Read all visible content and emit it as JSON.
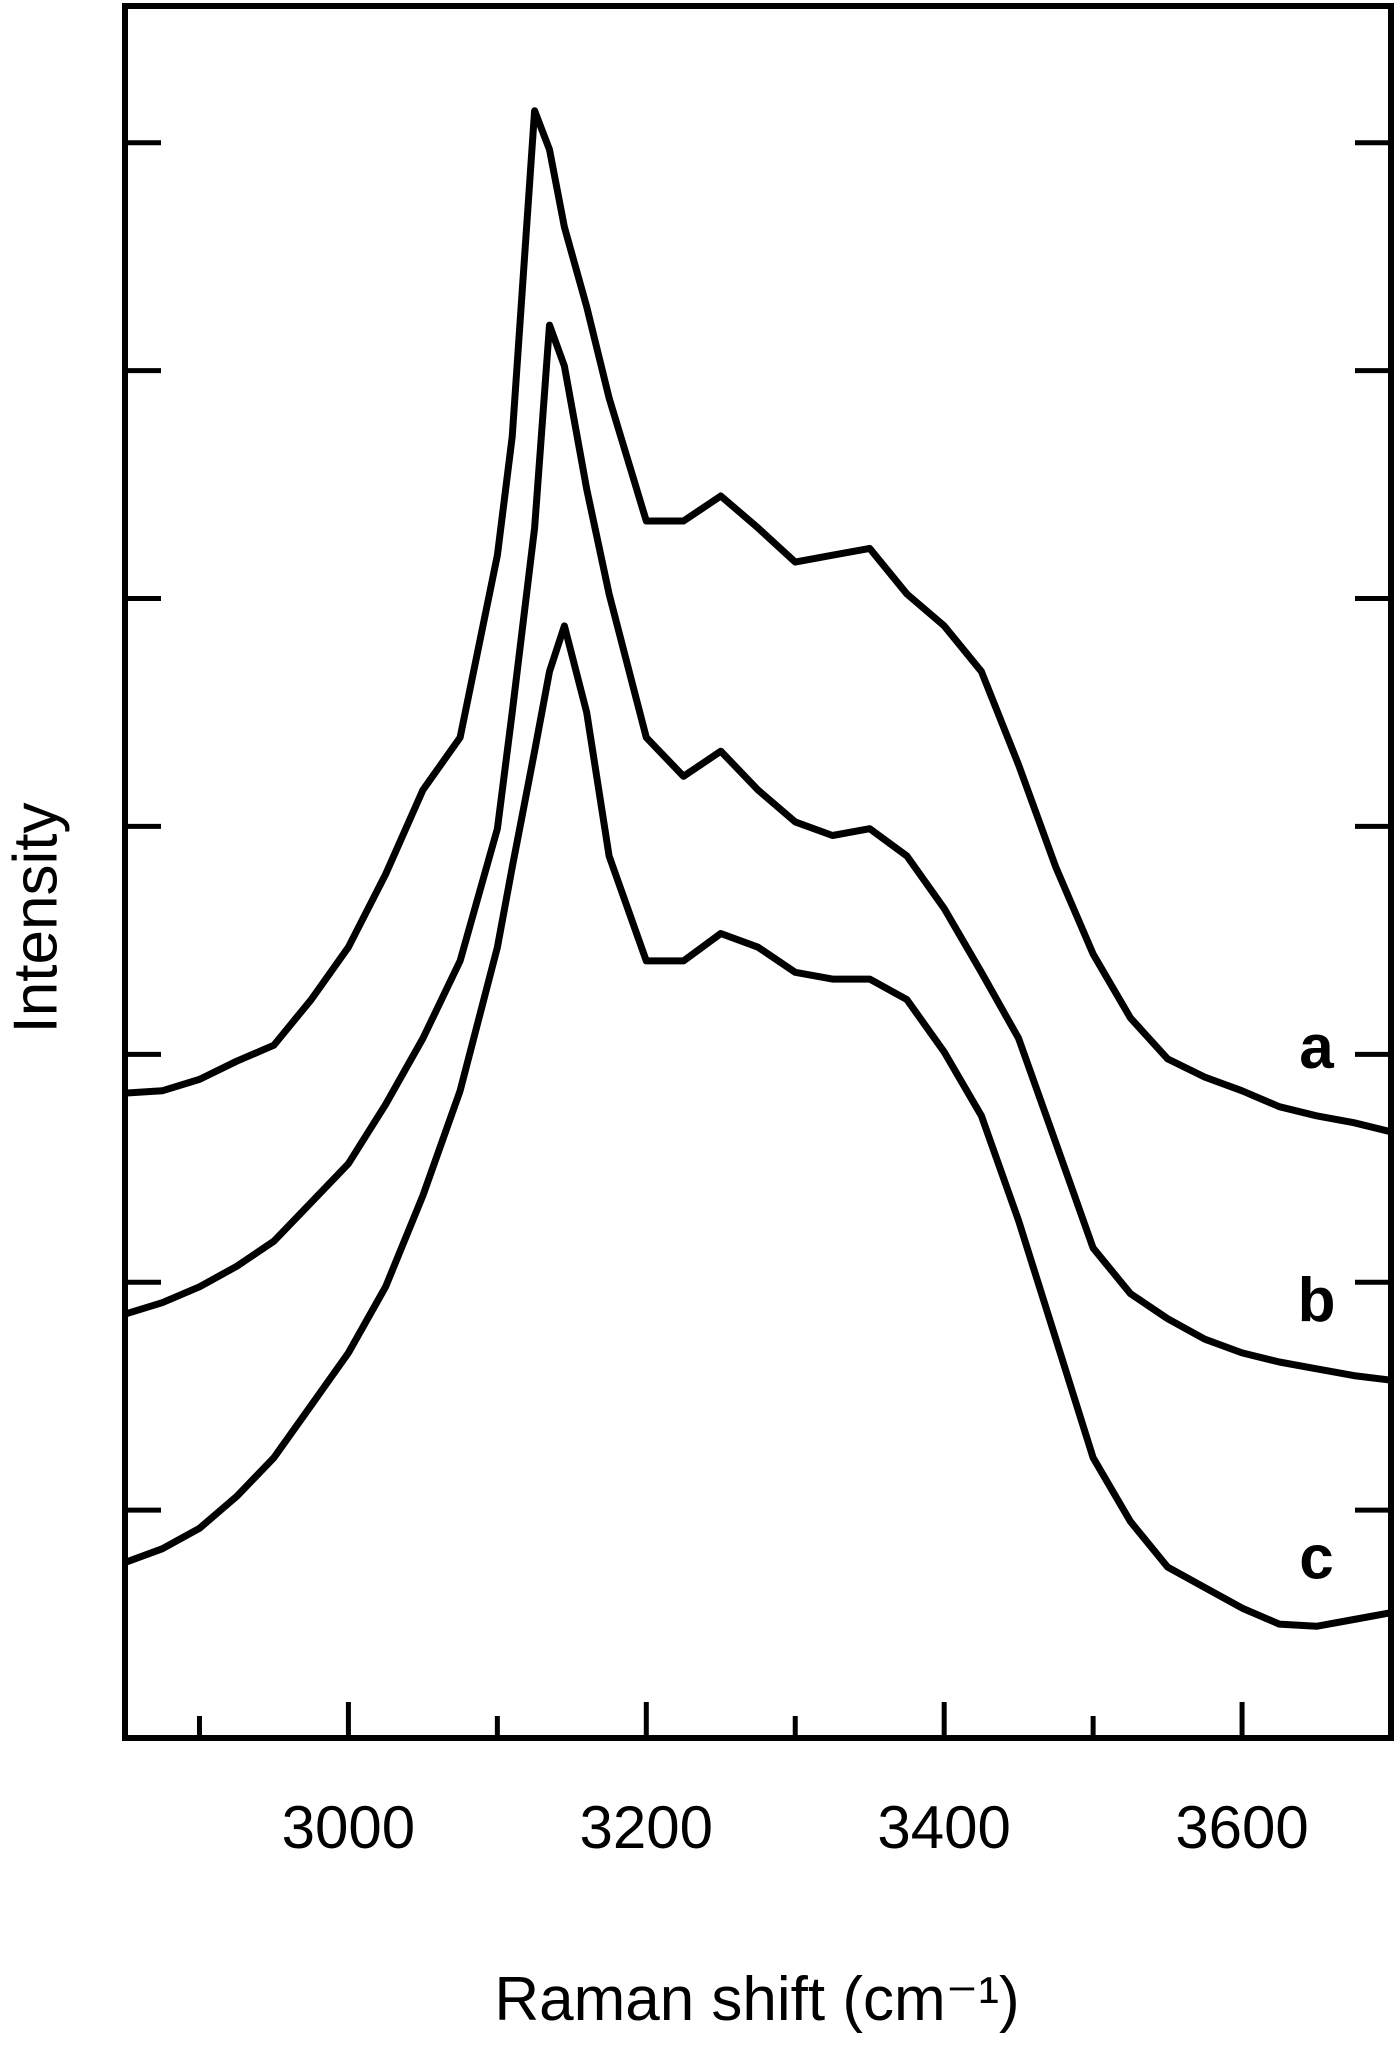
{
  "chart_data": {
    "type": "line",
    "x_label": "Raman shift (cm⁻¹)",
    "y_label": "Intensity",
    "xlim": [
      2850,
      3700
    ],
    "xticks": [
      3000,
      3200,
      3400,
      3600
    ],
    "xticks_minor": [
      2900,
      3100,
      3300,
      3500,
      3700
    ],
    "ylim": [
      0,
      7.6
    ],
    "yticks": [
      1,
      2,
      3,
      4,
      5,
      6,
      7
    ],
    "x": [
      2850,
      2875,
      2900,
      2925,
      2950,
      2975,
      3000,
      3025,
      3050,
      3075,
      3100,
      3110,
      3125,
      3135,
      3145,
      3160,
      3175,
      3200,
      3225,
      3250,
      3275,
      3300,
      3325,
      3350,
      3375,
      3400,
      3425,
      3450,
      3475,
      3500,
      3525,
      3550,
      3575,
      3600,
      3625,
      3650,
      3675,
      3700
    ],
    "series": [
      {
        "name": "a",
        "color": "#000000",
        "values": [
          2.83,
          2.84,
          2.89,
          2.97,
          3.04,
          3.24,
          3.47,
          3.79,
          4.16,
          4.39,
          5.19,
          5.71,
          7.14,
          6.97,
          6.63,
          6.28,
          5.88,
          5.34,
          5.34,
          5.45,
          5.31,
          5.16,
          5.19,
          5.22,
          5.02,
          4.88,
          4.68,
          4.27,
          3.82,
          3.44,
          3.16,
          2.98,
          2.9,
          2.84,
          2.77,
          2.73,
          2.7,
          2.66
        ]
      },
      {
        "name": "b",
        "color": "#000000",
        "values": [
          1.86,
          1.91,
          1.98,
          2.07,
          2.18,
          2.35,
          2.52,
          2.78,
          3.07,
          3.41,
          3.99,
          4.5,
          5.31,
          6.2,
          6.02,
          5.48,
          5.02,
          4.39,
          4.22,
          4.33,
          4.16,
          4.02,
          3.96,
          3.99,
          3.87,
          3.64,
          3.36,
          3.07,
          2.61,
          2.15,
          1.95,
          1.84,
          1.75,
          1.69,
          1.65,
          1.62,
          1.59,
          1.57
        ]
      },
      {
        "name": "c",
        "color": "#000000",
        "values": [
          0.77,
          0.83,
          0.92,
          1.06,
          1.23,
          1.46,
          1.69,
          1.98,
          2.38,
          2.84,
          3.47,
          3.82,
          4.33,
          4.68,
          4.88,
          4.5,
          3.87,
          3.41,
          3.41,
          3.53,
          3.47,
          3.36,
          3.33,
          3.33,
          3.24,
          3.01,
          2.73,
          2.27,
          1.75,
          1.23,
          0.95,
          0.75,
          0.66,
          0.57,
          0.5,
          0.49,
          0.52,
          0.55
        ]
      }
    ]
  }
}
